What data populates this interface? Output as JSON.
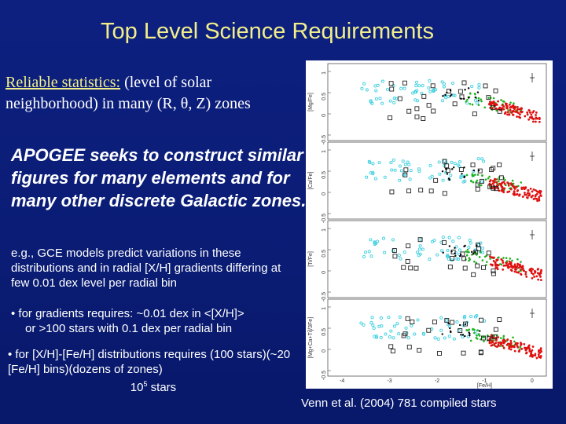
{
  "slide": {
    "title": "Top Level Science Requirements",
    "intro_underlined": "Reliable statistics:",
    "intro_rest": " (level of solar neighborhood) in many (R, θ, Z) zones",
    "apogee": "APOGEE seeks to construct similar figures for many elements and for many other discrete Galactic zones.",
    "eg": "e.g., GCE models predict variations in these distributions and in radial [X/H] gradients differing at few 0.01 dex level per radial bin",
    "gradients_line1": "• for gradients requires: ~0.01 dex in <[X/H]>",
    "gradients_line2": "or >100 stars with 0.1 dex per radial bin",
    "xh_line1": "• for [X/H]-[Fe/H] distributions requires (100 stars)(~20 [Fe/H] bins)(dozens of zones)",
    "xh_count": "10",
    "xh_exp": "5",
    "xh_unit": " stars",
    "credit": "Venn et al. (2004) 781 compiled stars"
  },
  "figure": {
    "panels": [
      {
        "ylabel": "[Mg/Fe]",
        "ticks": [
          "1",
          "0.5",
          "0",
          "-0.5"
        ]
      },
      {
        "ylabel": "[Ca/Fe]",
        "ticks": [
          "1",
          "0.5",
          "0",
          "-0.5"
        ]
      },
      {
        "ylabel": "[Ti/Fe]",
        "ticks": [
          "1",
          "0.5",
          "0",
          "-0.5"
        ]
      },
      {
        "ylabel": "[Mg+Ca+Ti]/3Fe]",
        "ticks": [
          "1",
          "0.5",
          "0",
          "-0.5"
        ]
      }
    ],
    "xticks": [
      "-4",
      "-3",
      "-2",
      "-1",
      "0"
    ],
    "xlabel": "[Fe/H]",
    "colors": {
      "thin_disk": "#e01010",
      "thick_disk": "#20b020",
      "halo": "#40d0e0",
      "dwarf": "#000000",
      "dsph": "#222222"
    }
  }
}
